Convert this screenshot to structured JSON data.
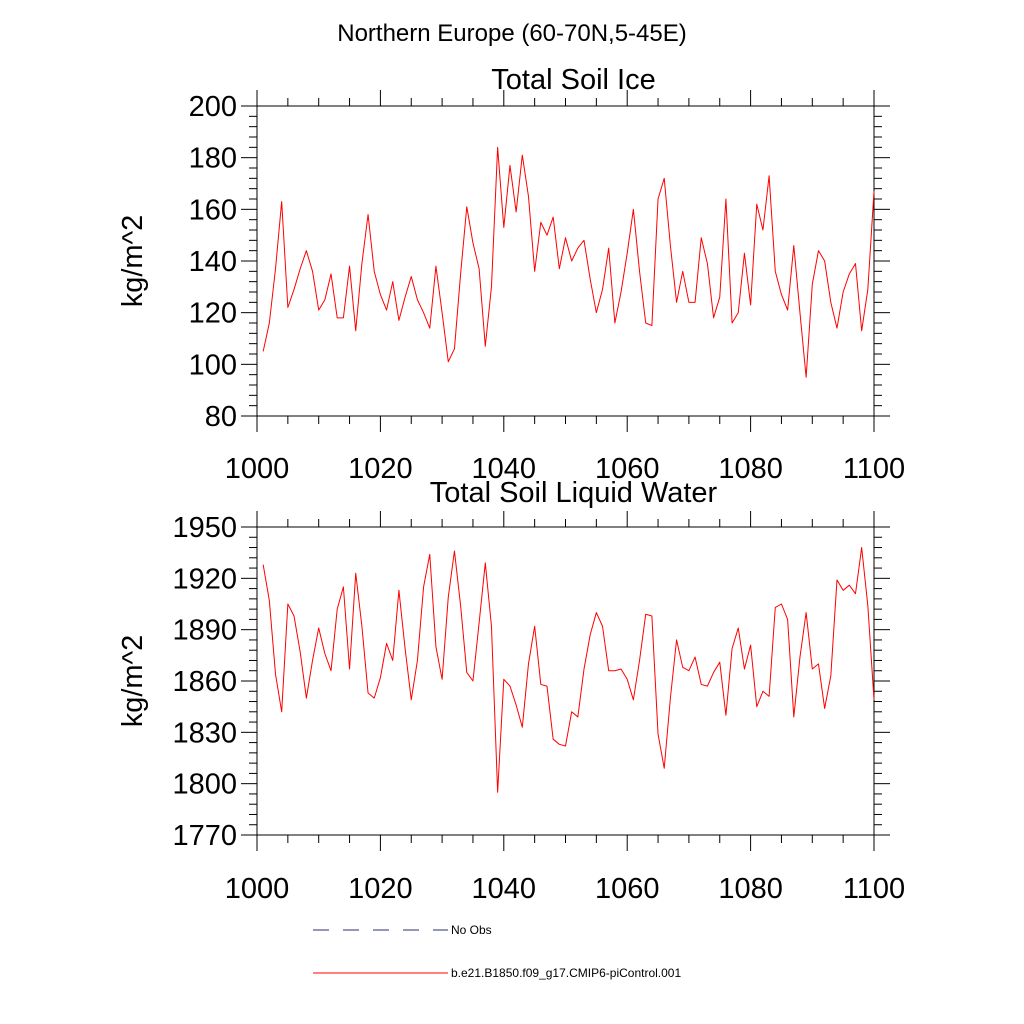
{
  "figure": {
    "title": "Northern Europe (60-70N,5-45E)"
  },
  "chart_data": [
    {
      "type": "line",
      "title": "Total Soil Ice",
      "xlabel": "",
      "ylabel": "kg/m^2",
      "xlim": [
        1000,
        1100
      ],
      "ylim": [
        80,
        200
      ],
      "xticks": [
        1000,
        1020,
        1040,
        1060,
        1080,
        1100
      ],
      "yticks": [
        80,
        100,
        120,
        140,
        160,
        180,
        200
      ],
      "x_start": 1001,
      "series": [
        {
          "name": "b.e21.B1850.f09_g17.CMIP6-piControl.001",
          "color": "#ff0000",
          "values": [
            105,
            116,
            137,
            163,
            122,
            129,
            137,
            144,
            136,
            121,
            125,
            135,
            118,
            118,
            138,
            113,
            139,
            158,
            136,
            127,
            121,
            132,
            117,
            126,
            134,
            125,
            120,
            114,
            138,
            120,
            101,
            106,
            135,
            161,
            147,
            137,
            107,
            130,
            184,
            153,
            177,
            159,
            181,
            165,
            136,
            155,
            150,
            157,
            137,
            149,
            140,
            145,
            148,
            133,
            120,
            129,
            145,
            116,
            128,
            143,
            160,
            136,
            116,
            115,
            164,
            172,
            146,
            124,
            136,
            124,
            124,
            149,
            139,
            118,
            126,
            164,
            116,
            120,
            143,
            123,
            162,
            152,
            173,
            136,
            127,
            121,
            146,
            120,
            95,
            131,
            144,
            140,
            124,
            114,
            128,
            135,
            139,
            113,
            129,
            167
          ]
        }
      ]
    },
    {
      "type": "line",
      "title": "Total Soil Liquid Water",
      "xlabel": "",
      "ylabel": "kg/m^2",
      "xlim": [
        1000,
        1100
      ],
      "ylim": [
        1770,
        1950
      ],
      "xticks": [
        1000,
        1020,
        1040,
        1060,
        1080,
        1100
      ],
      "yticks": [
        1770,
        1800,
        1830,
        1860,
        1890,
        1920,
        1950
      ],
      "x_start": 1001,
      "series": [
        {
          "name": "b.e21.B1850.f09_g17.CMIP6-piControl.001",
          "color": "#ff0000",
          "values": [
            1928,
            1907,
            1864,
            1842,
            1905,
            1898,
            1877,
            1850,
            1872,
            1891,
            1876,
            1866,
            1902,
            1915,
            1867,
            1923,
            1892,
            1853,
            1850,
            1862,
            1882,
            1872,
            1913,
            1879,
            1849,
            1872,
            1915,
            1934,
            1880,
            1861,
            1909,
            1936,
            1904,
            1865,
            1860,
            1894,
            1929,
            1892,
            1795,
            1861,
            1857,
            1846,
            1833,
            1870,
            1892,
            1858,
            1857,
            1826,
            1823,
            1822,
            1842,
            1839,
            1867,
            1887,
            1900,
            1892,
            1866,
            1866,
            1867,
            1861,
            1849,
            1872,
            1899,
            1898,
            1829,
            1809,
            1850,
            1884,
            1868,
            1866,
            1874,
            1858,
            1857,
            1865,
            1871,
            1840,
            1879,
            1891,
            1867,
            1881,
            1845,
            1854,
            1851,
            1903,
            1905,
            1896,
            1839,
            1874,
            1900,
            1867,
            1870,
            1844,
            1863,
            1919,
            1913,
            1916,
            1911,
            1938,
            1904,
            1849
          ]
        }
      ]
    }
  ],
  "legend": {
    "items": [
      {
        "label": "No Obs",
        "color": "#2a2f6e",
        "style": "dashed"
      },
      {
        "label": "b.e21.B1850.f09_g17.CMIP6-piControl.001",
        "color": "#ff0000",
        "style": "solid"
      }
    ]
  }
}
